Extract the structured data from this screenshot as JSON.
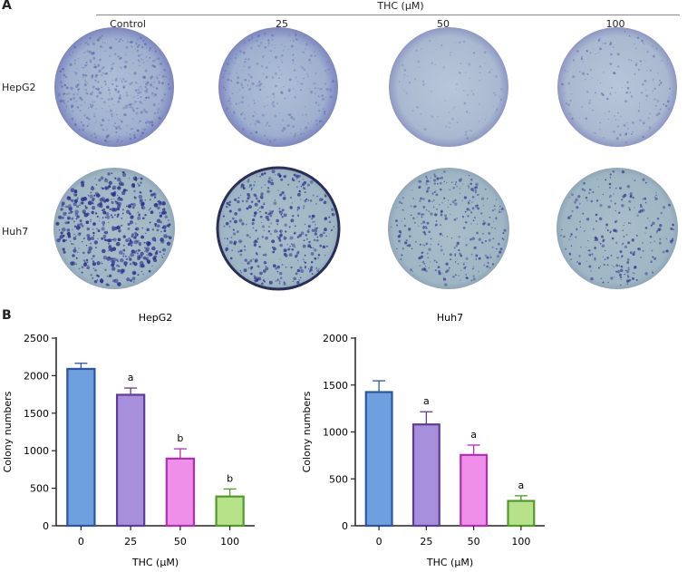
{
  "panel_a": {
    "label": "A",
    "header": "THC (μM)",
    "columns": [
      "Control",
      "25",
      "50",
      "100"
    ],
    "rows": [
      "HepG2",
      "Huh7"
    ]
  },
  "panel_b": {
    "label": "B"
  },
  "colors": {
    "dish_light": "#a9bdd0",
    "dish_huh7": "#9fb7c7",
    "stain": "#2a2d8a",
    "bars": [
      "#6e9fde",
      "#a88fdb",
      "#ef8fea",
      "#b7e28a"
    ],
    "bar_edges": [
      "#2b55a0",
      "#5e3a9c",
      "#b02fb3",
      "#4f9a2a"
    ]
  },
  "chart_data": [
    {
      "type": "bar",
      "title": "HepG2",
      "categories": [
        "0",
        "25",
        "50",
        "100"
      ],
      "values": [
        2090,
        1745,
        895,
        390
      ],
      "errors": [
        75,
        90,
        130,
        100
      ],
      "annotations": [
        "",
        "a",
        "b",
        "b"
      ],
      "xlabel": "THC (μM)",
      "ylabel": "Colony numbers",
      "ylim": [
        0,
        2500
      ],
      "yticks": [
        0,
        500,
        1000,
        1500,
        2000,
        2500
      ]
    },
    {
      "type": "bar",
      "title": "Huh7",
      "categories": [
        "0",
        "25",
        "50",
        "100"
      ],
      "values": [
        1425,
        1080,
        755,
        265
      ],
      "errors": [
        120,
        135,
        105,
        55
      ],
      "annotations": [
        "",
        "a",
        "a",
        "a"
      ],
      "xlabel": "THC (μM)",
      "ylabel": "Colony numbers",
      "ylim": [
        0,
        2000
      ],
      "yticks": [
        0,
        500,
        1000,
        1500,
        2000
      ]
    }
  ]
}
